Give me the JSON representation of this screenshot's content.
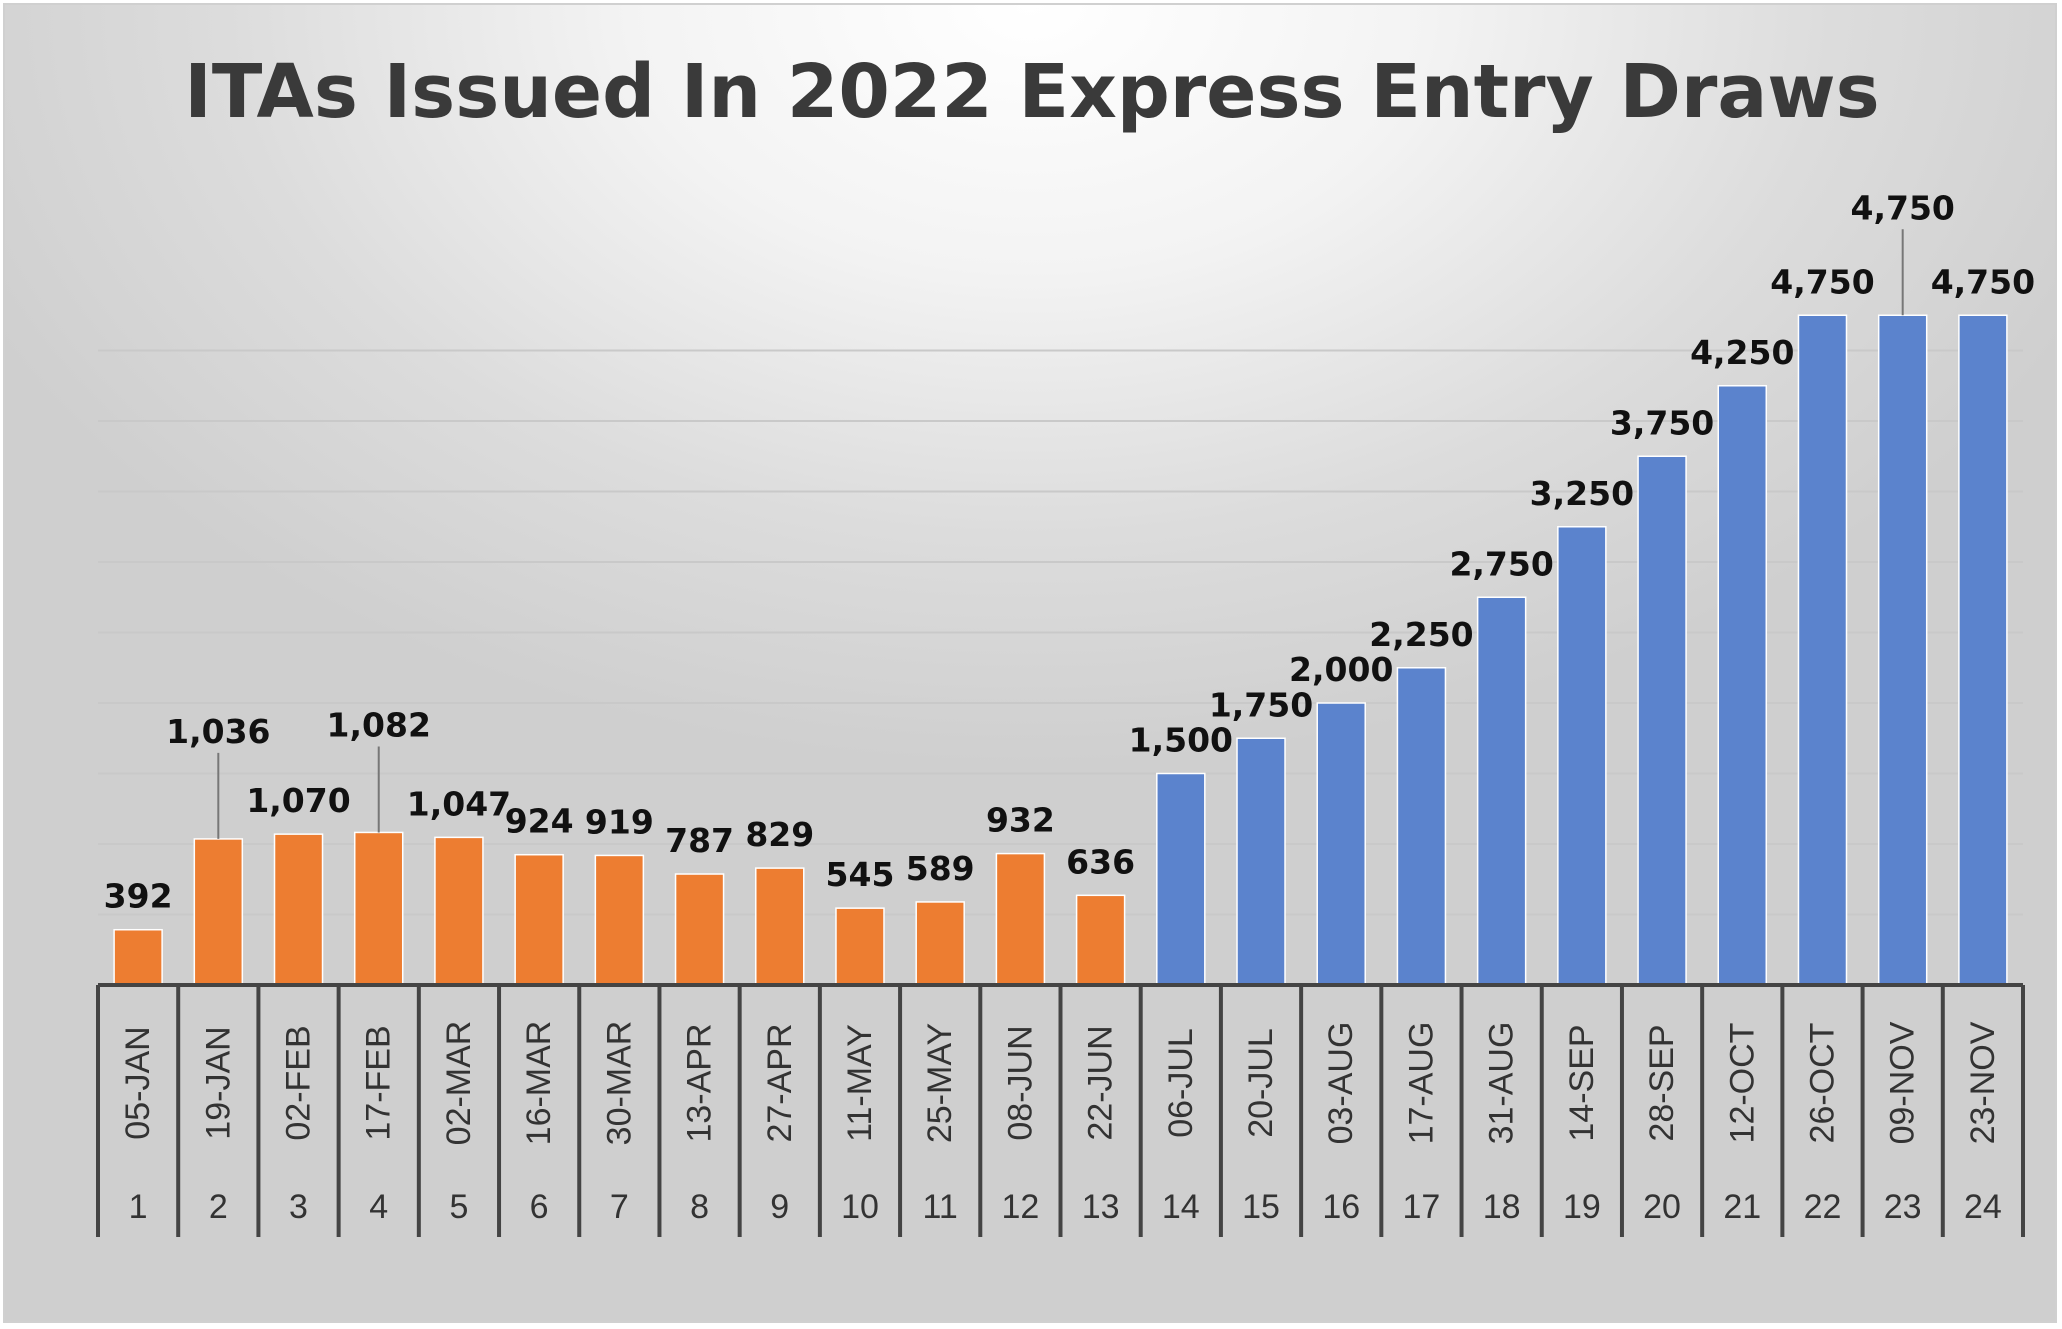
{
  "colors": {
    "orange": "#ED7D31",
    "blue": "#5B83CD",
    "grid": "#c9c9c9",
    "axis": "#444444"
  },
  "chart_data": {
    "type": "bar",
    "title": "ITAs Issued In 2022 Express Entry Draws",
    "xlabel": "",
    "ylabel": "",
    "ylim": [
      0,
      5000
    ],
    "grid": true,
    "categories": [
      "1",
      "2",
      "3",
      "4",
      "5",
      "6",
      "7",
      "8",
      "9",
      "10",
      "11",
      "12",
      "13",
      "14",
      "15",
      "16",
      "17",
      "18",
      "19",
      "20",
      "21",
      "22",
      "23",
      "24"
    ],
    "dates": [
      "05-JAN",
      "19-JAN",
      "02-FEB",
      "17-FEB",
      "02-MAR",
      "16-MAR",
      "30-MAR",
      "13-APR",
      "27-APR",
      "11-MAY",
      "25-MAY",
      "08-JUN",
      "22-JUN",
      "06-JUL",
      "20-JUL",
      "03-AUG",
      "17-AUG",
      "31-AUG",
      "14-SEP",
      "28-SEP",
      "12-OCT",
      "26-OCT",
      "09-NOV",
      "23-NOV"
    ],
    "values": [
      392,
      1036,
      1070,
      1082,
      1047,
      924,
      919,
      787,
      829,
      545,
      589,
      932,
      636,
      1500,
      1750,
      2000,
      2250,
      2750,
      3250,
      3750,
      4250,
      4750,
      4750,
      4750
    ],
    "labels": [
      "392",
      "1,036",
      "1,070",
      "1,082",
      "1,047",
      "924",
      "919",
      "787",
      "829",
      "545",
      "589",
      "932",
      "636",
      "1,500",
      "1,750",
      "2,000",
      "2,250",
      "2,750",
      "3,250",
      "3,750",
      "4,250",
      "4,750",
      "4,750",
      "4,750"
    ],
    "color_groups": [
      "orange",
      "orange",
      "orange",
      "orange",
      "orange",
      "orange",
      "orange",
      "orange",
      "orange",
      "orange",
      "orange",
      "orange",
      "orange",
      "blue",
      "blue",
      "blue",
      "blue",
      "blue",
      "blue",
      "blue",
      "blue",
      "blue",
      "blue",
      "blue"
    ],
    "raised_label_indices": [
      1,
      3,
      22
    ]
  }
}
